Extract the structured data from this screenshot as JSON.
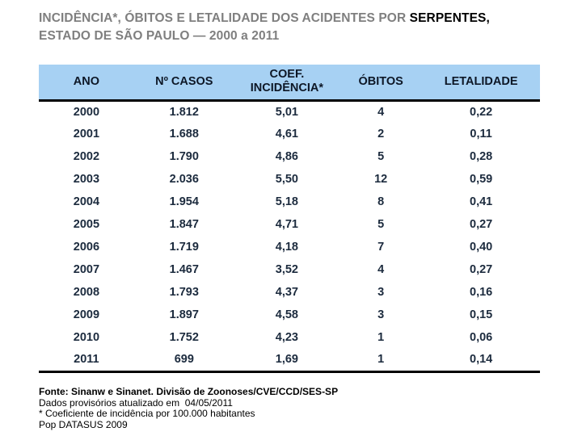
{
  "slide": {
    "title": {
      "line1_gray": "INCIDÊNCIA*, ÓBITOS E LETALIDADE DOS ACIDENTES POR ",
      "line1_black": "SERPENTES,",
      "line2": "ESTADO DE SÃO PAULO — 2000 a 2011"
    },
    "table": {
      "columns": [
        "ANO",
        "Nº CASOS",
        "COEF. INCIDÊNCIA*",
        "ÓBITOS",
        "LETALIDADE"
      ],
      "rows": [
        [
          "2000",
          "1.812",
          "5,01",
          "4",
          "0,22"
        ],
        [
          "2001",
          "1.688",
          "4,61",
          "2",
          "0,11"
        ],
        [
          "2002",
          "1.790",
          "4,86",
          "5",
          "0,28"
        ],
        [
          "2003",
          "2.036",
          "5,50",
          "12",
          "0,59"
        ],
        [
          "2004",
          "1.954",
          "5,18",
          "8",
          "0,41"
        ],
        [
          "2005",
          "1.847",
          "4,71",
          "5",
          "0,27"
        ],
        [
          "2006",
          "1.719",
          "4,18",
          "7",
          "0,40"
        ],
        [
          "2007",
          "1.467",
          "3,52",
          "4",
          "0,27"
        ],
        [
          "2008",
          "1.793",
          "4,37",
          "3",
          "0,16"
        ],
        [
          "2009",
          "1.897",
          "4,58",
          "3",
          "0,15"
        ],
        [
          "2010",
          "1.752",
          "4,23",
          "1",
          "0,06"
        ],
        [
          "2011",
          "699",
          "1,69",
          "1",
          "0,14"
        ]
      ]
    },
    "footnotes": [
      {
        "text": "Fonte: Sinanw e Sinanet. Divisão de Zoonoses/CVE/CCD/SES-SP",
        "bold": true
      },
      {
        "text": "Dados provisórios atualizado em  04/05/2011",
        "bold": false
      },
      {
        "text": "* Coeficiente de incidência por 100.000 habitantes",
        "bold": false
      },
      {
        "text": "Pop DATASUS 2009",
        "bold": false
      }
    ],
    "colors": {
      "title_gray": "#7f7f7f",
      "title_highlight": "#000000",
      "header_bg": "#a7d1f3",
      "header_text": "#0d1726",
      "data_text": "#1c2b3e",
      "rule": "#000000"
    }
  }
}
